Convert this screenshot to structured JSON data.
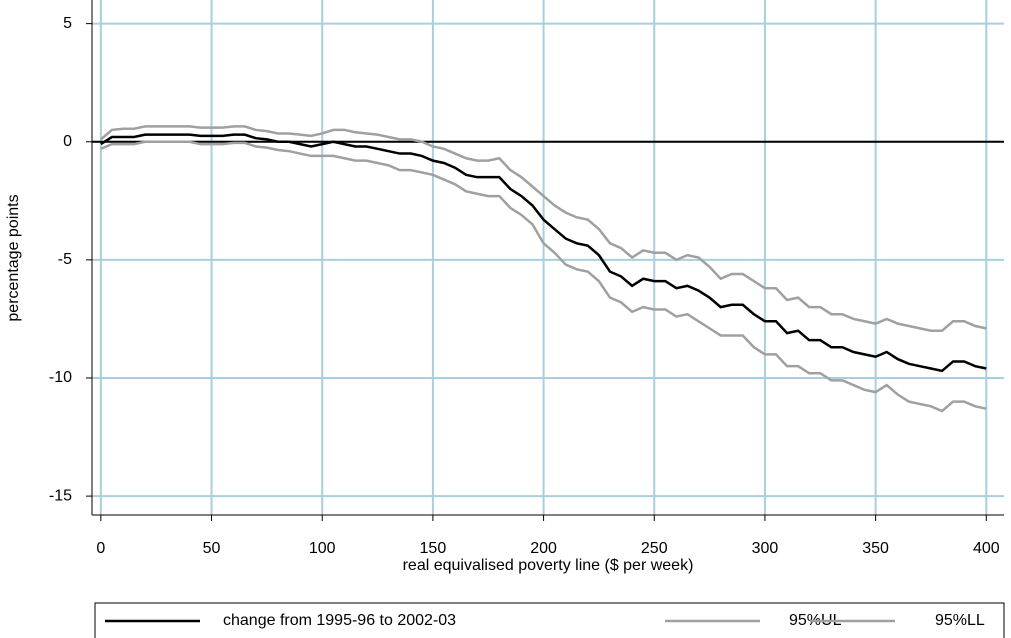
{
  "chart_data": {
    "type": "line",
    "x_label": "real equivalised poverty line ($ per week)",
    "y_label": "percentage points",
    "x": [
      0,
      5,
      10,
      15,
      20,
      25,
      30,
      35,
      40,
      45,
      50,
      55,
      60,
      65,
      70,
      75,
      80,
      85,
      90,
      95,
      100,
      105,
      110,
      115,
      120,
      125,
      130,
      135,
      140,
      145,
      150,
      155,
      160,
      165,
      170,
      175,
      180,
      185,
      190,
      195,
      200,
      205,
      210,
      215,
      220,
      225,
      230,
      235,
      240,
      245,
      250,
      255,
      260,
      265,
      270,
      275,
      280,
      285,
      290,
      295,
      300,
      305,
      310,
      315,
      320,
      325,
      330,
      335,
      340,
      345,
      350,
      355,
      360,
      365,
      370,
      375,
      380,
      385,
      390,
      395,
      400
    ],
    "series": [
      {
        "name": "change from 1995-96 to 2002-03",
        "color": "#000000",
        "values": [
          -0.1,
          0.2,
          0.2,
          0.2,
          0.3,
          0.3,
          0.3,
          0.3,
          0.3,
          0.25,
          0.25,
          0.25,
          0.3,
          0.3,
          0.15,
          0.1,
          0.0,
          0.0,
          -0.1,
          -0.2,
          -0.1,
          0.0,
          -0.1,
          -0.2,
          -0.2,
          -0.3,
          -0.4,
          -0.5,
          -0.5,
          -0.6,
          -0.8,
          -0.9,
          -1.1,
          -1.4,
          -1.5,
          -1.5,
          -1.5,
          -2.0,
          -2.3,
          -2.7,
          -3.3,
          -3.7,
          -4.1,
          -4.3,
          -4.4,
          -4.8,
          -5.5,
          -5.7,
          -6.1,
          -5.8,
          -5.9,
          -5.9,
          -6.2,
          -6.1,
          -6.3,
          -6.6,
          -7.0,
          -6.9,
          -6.9,
          -7.3,
          -7.6,
          -7.6,
          -8.1,
          -8.0,
          -8.4,
          -8.4,
          -8.7,
          -8.7,
          -8.9,
          -9.0,
          -9.1,
          -8.9,
          -9.2,
          -9.4,
          -9.5,
          -9.6,
          -9.7,
          -9.3,
          -9.3,
          -9.5,
          -9.6
        ]
      },
      {
        "name": "95%UL",
        "color": "#a0a0a0",
        "values": [
          0.1,
          0.5,
          0.55,
          0.55,
          0.65,
          0.65,
          0.65,
          0.65,
          0.65,
          0.6,
          0.6,
          0.6,
          0.65,
          0.65,
          0.5,
          0.45,
          0.35,
          0.35,
          0.3,
          0.25,
          0.35,
          0.5,
          0.5,
          0.4,
          0.35,
          0.3,
          0.2,
          0.1,
          0.1,
          0.0,
          -0.2,
          -0.3,
          -0.5,
          -0.7,
          -0.8,
          -0.8,
          -0.7,
          -1.2,
          -1.5,
          -1.9,
          -2.3,
          -2.7,
          -3.0,
          -3.2,
          -3.3,
          -3.7,
          -4.3,
          -4.5,
          -4.9,
          -4.6,
          -4.7,
          -4.7,
          -5.0,
          -4.8,
          -4.9,
          -5.3,
          -5.8,
          -5.6,
          -5.6,
          -5.9,
          -6.2,
          -6.2,
          -6.7,
          -6.6,
          -7.0,
          -7.0,
          -7.3,
          -7.3,
          -7.5,
          -7.6,
          -7.7,
          -7.5,
          -7.7,
          -7.8,
          -7.9,
          -8.0,
          -8.0,
          -7.6,
          -7.6,
          -7.8,
          -7.9
        ]
      },
      {
        "name": "95%LL",
        "color": "#a0a0a0",
        "values": [
          -0.3,
          -0.1,
          -0.1,
          -0.1,
          0.0,
          0.0,
          0.0,
          0.0,
          0.0,
          -0.1,
          -0.1,
          -0.1,
          -0.05,
          -0.05,
          -0.2,
          -0.25,
          -0.35,
          -0.4,
          -0.5,
          -0.6,
          -0.6,
          -0.6,
          -0.7,
          -0.8,
          -0.8,
          -0.9,
          -1.0,
          -1.2,
          -1.2,
          -1.3,
          -1.4,
          -1.6,
          -1.8,
          -2.1,
          -2.2,
          -2.3,
          -2.3,
          -2.8,
          -3.1,
          -3.5,
          -4.3,
          -4.7,
          -5.2,
          -5.4,
          -5.5,
          -5.9,
          -6.6,
          -6.8,
          -7.2,
          -7.0,
          -7.1,
          -7.1,
          -7.4,
          -7.3,
          -7.6,
          -7.9,
          -8.2,
          -8.2,
          -8.2,
          -8.7,
          -9.0,
          -9.0,
          -9.5,
          -9.5,
          -9.8,
          -9.8,
          -10.1,
          -10.1,
          -10.3,
          -10.5,
          -10.6,
          -10.3,
          -10.7,
          -11.0,
          -11.1,
          -11.2,
          -11.4,
          -11.0,
          -11.0,
          -11.2,
          -11.3
        ]
      }
    ],
    "xlim": [
      -4,
      408
    ],
    "ylim": [
      -15.8,
      6
    ],
    "xticks": [
      0,
      50,
      100,
      150,
      200,
      250,
      300,
      350,
      400
    ],
    "yticks": [
      -15,
      -10,
      -5,
      0,
      5
    ],
    "reference_line": 0,
    "grid": true,
    "grid_color": "#a8cfdc",
    "legend": "bottom"
  }
}
